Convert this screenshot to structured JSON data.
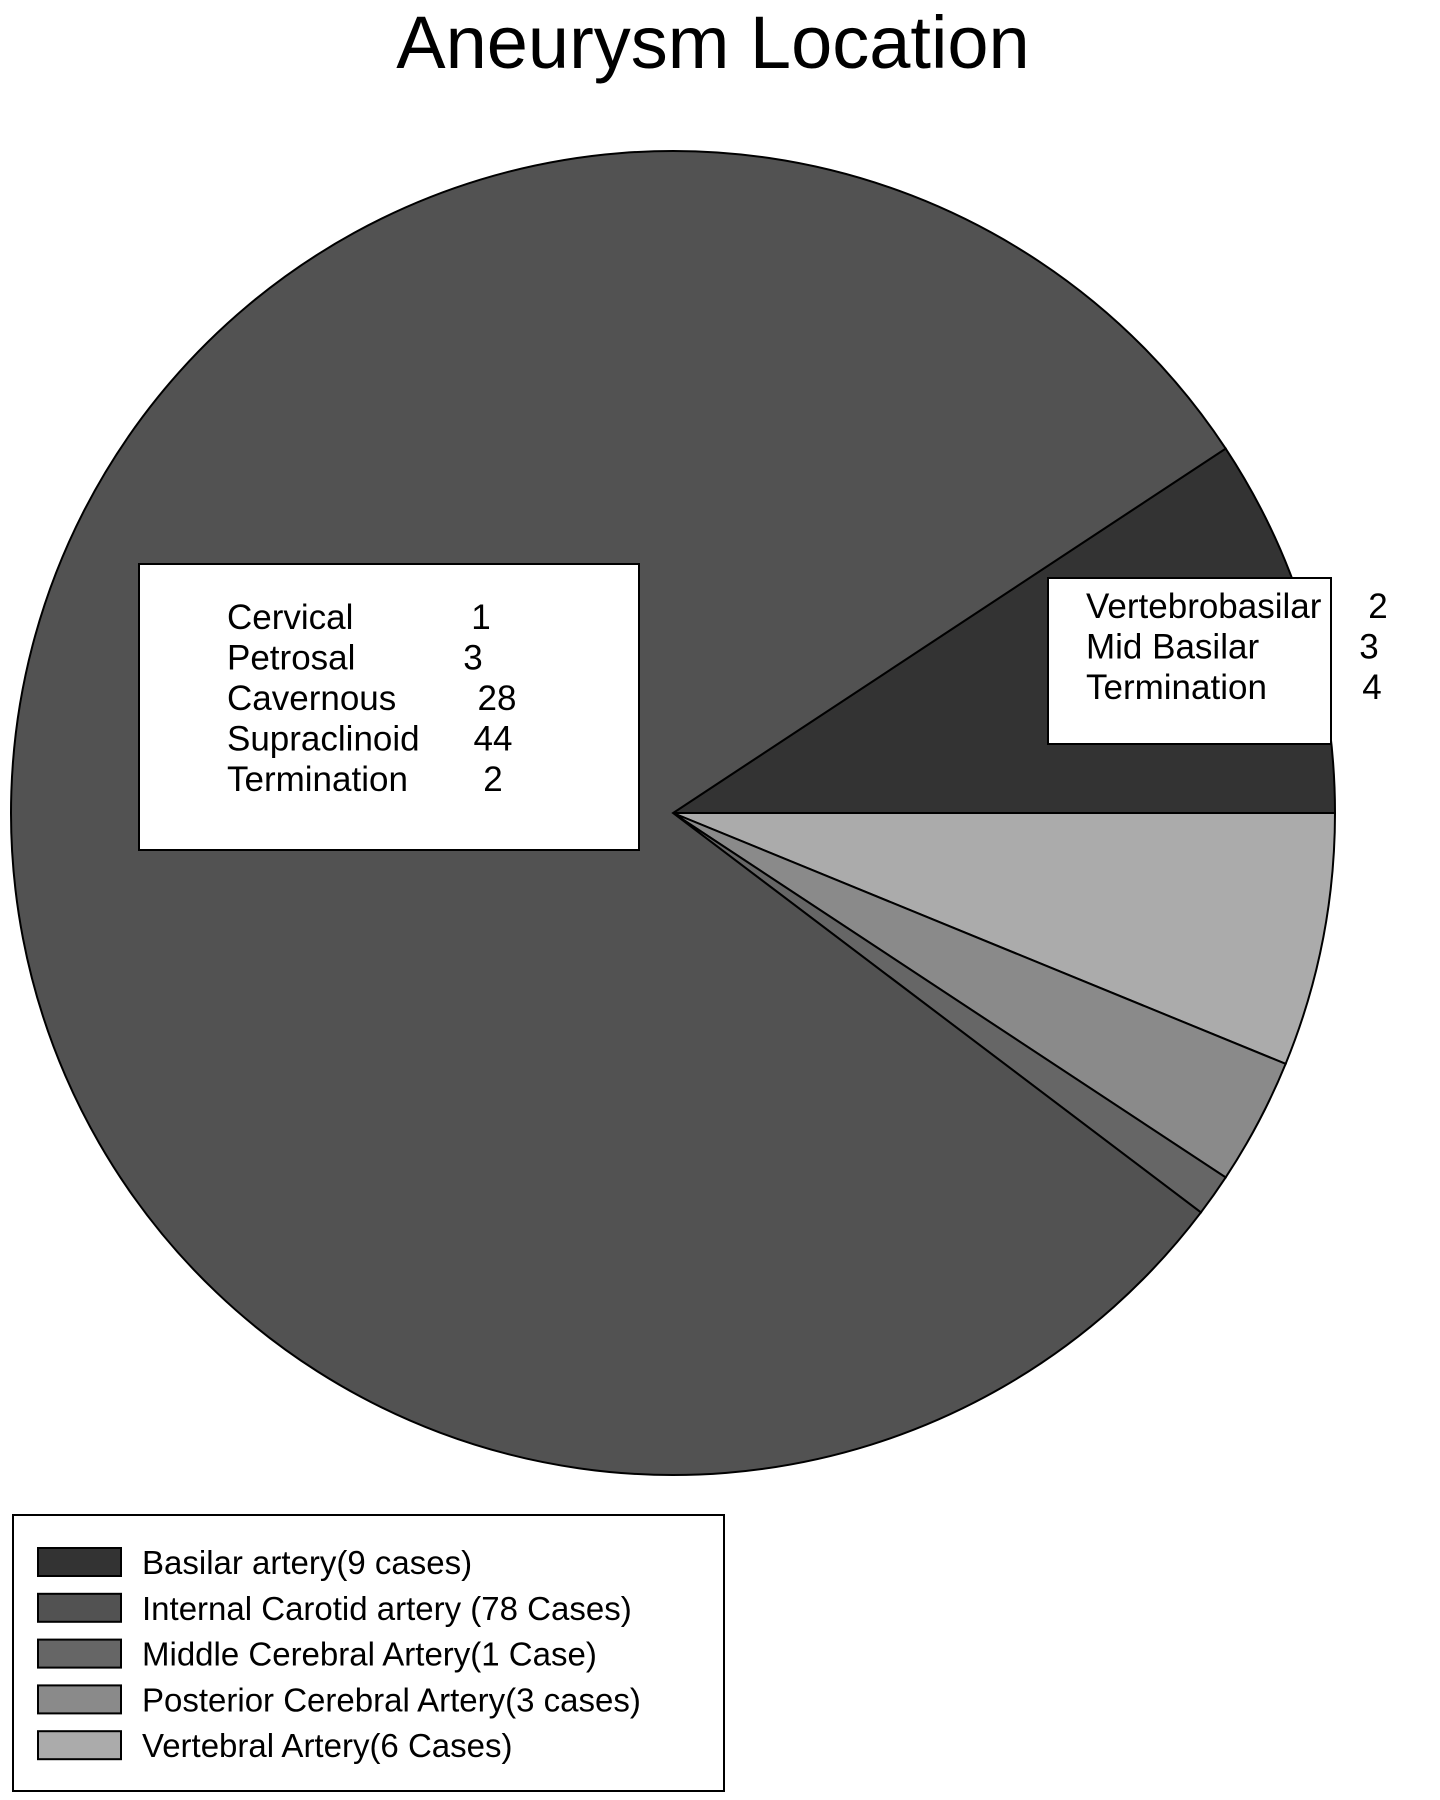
{
  "chart_data": {
    "type": "pie",
    "title": "Aneurysm Location",
    "slices": [
      {
        "label": "Basilar artery(9 cases)",
        "value": 9,
        "color": "#333333"
      },
      {
        "label": "Vertebral Artery(6 Cases)",
        "value": 6,
        "color": "#ababab"
      },
      {
        "label": "Posterior Cerebral Artery(3 cases)",
        "value": 3,
        "color": "#8a8a8a"
      },
      {
        "label": "Middle Cerebral Artery(1 Case)",
        "value": 1,
        "color": "#666666"
      },
      {
        "label": "Internal Carotid artery (78 Cases)",
        "value": 78,
        "color": "#525252"
      }
    ],
    "legend": {
      "placement": "bottom-left",
      "items": [
        {
          "label": "Basilar artery(9 cases)",
          "color": "#333333"
        },
        {
          "label": "Internal Carotid artery (78 Cases)",
          "color": "#525252"
        },
        {
          "label": "Middle Cerebral Artery(1 Case)",
          "color": "#666666"
        },
        {
          "label": "Posterior Cerebral Artery(3 cases)",
          "color": "#8a8a8a"
        },
        {
          "label": "Vertebral Artery(6 Cases)",
          "color": "#ababab"
        }
      ]
    },
    "annotations": {
      "internal_carotid": [
        {
          "name": "Cervical",
          "count": "1"
        },
        {
          "name": "Petrosal",
          "count": "3"
        },
        {
          "name": "Cavernous",
          "count": "28"
        },
        {
          "name": "Supraclinoid",
          "count": "44"
        },
        {
          "name": "Termination",
          "count": "2"
        }
      ],
      "basilar": [
        {
          "name": "Vertebrobasilar",
          "count": "2"
        },
        {
          "name": "Mid Basilar",
          "count": "3"
        },
        {
          "name": "Termination",
          "count": "4"
        }
      ]
    }
  }
}
